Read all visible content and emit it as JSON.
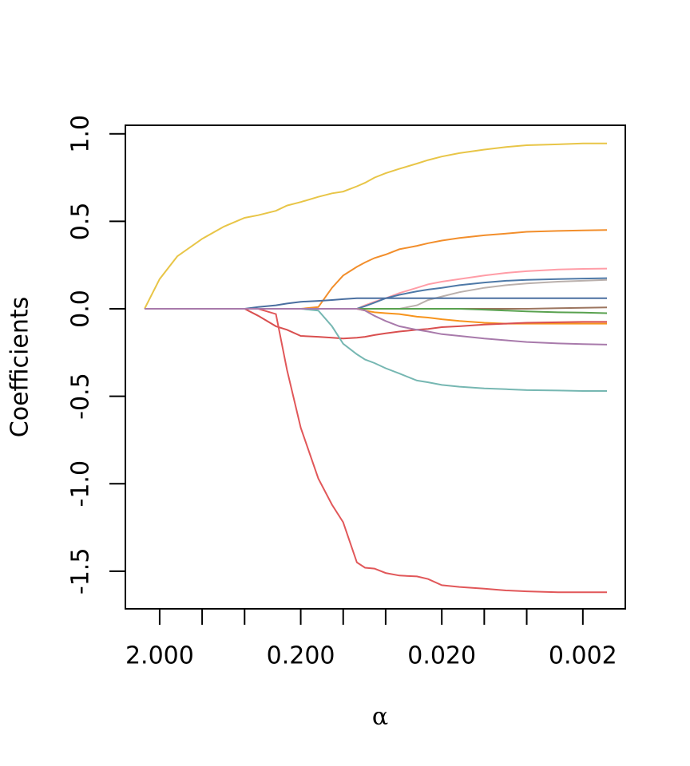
{
  "chart_data": {
    "type": "line",
    "xlabel": "α",
    "ylabel": "Coefficients",
    "xscale": "log",
    "x": [
      2.56,
      2,
      1.5,
      1,
      0.7,
      0.5,
      0.4,
      0.3,
      0.25,
      0.2,
      0.15,
      0.12,
      0.1,
      0.08,
      0.07,
      0.06,
      0.05,
      0.04,
      0.03,
      0.025,
      0.02,
      0.015,
      0.01,
      0.007,
      0.005,
      0.003,
      0.002,
      0.00135
    ],
    "xlim": [
      3.5,
      0.001
    ],
    "xticks": [
      {
        "value": 2,
        "label": "2.000"
      },
      {
        "value": 0.2,
        "label": "0.200"
      },
      {
        "value": 0.02,
        "label": "0.020"
      },
      {
        "value": 0.002,
        "label": "0.002"
      }
    ],
    "xminor_ticks": [
      1,
      0.5,
      0.1,
      0.05,
      0.01,
      0.005
    ],
    "ylim": [
      -1.715,
      1.049
    ],
    "yticks": [
      {
        "value": 1,
        "label": "1.0"
      },
      0.5,
      {
        "value": 0,
        "label": "0.0"
      },
      -0.5,
      {
        "value": -1,
        "label": "-1.0"
      },
      -1.5
    ],
    "series": [
      {
        "color": "#e8c547",
        "values": [
          0,
          0.17,
          0.3,
          0.4,
          0.47,
          0.52,
          0.535,
          0.56,
          0.59,
          0.61,
          0.64,
          0.66,
          0.67,
          0.7,
          0.72,
          0.75,
          0.775,
          0.8,
          0.83,
          0.85,
          0.87,
          0.89,
          0.91,
          0.925,
          0.935,
          0.94,
          0.945,
          0.945
        ]
      },
      {
        "color": "#f28e2b",
        "values": [
          0,
          0,
          0,
          0,
          0,
          0,
          0,
          0,
          0,
          0,
          0.01,
          0.12,
          0.19,
          0.24,
          0.265,
          0.29,
          0.31,
          0.34,
          0.36,
          0.375,
          0.39,
          0.405,
          0.42,
          0.43,
          0.44,
          0.445,
          0.448,
          0.45
        ]
      },
      {
        "color": "#ff9da7",
        "values": [
          0,
          0,
          0,
          0,
          0,
          0,
          0,
          0,
          0,
          0,
          0,
          0,
          0,
          0,
          0.02,
          0.04,
          0.06,
          0.09,
          0.12,
          0.14,
          0.155,
          0.17,
          0.19,
          0.205,
          0.215,
          0.225,
          0.228,
          0.23
        ]
      },
      {
        "color": "#4e79a7",
        "values": [
          0,
          0,
          0,
          0,
          0,
          0,
          0,
          0,
          0,
          0,
          0,
          0,
          0,
          0,
          0.015,
          0.035,
          0.06,
          0.08,
          0.1,
          0.11,
          0.12,
          0.135,
          0.15,
          0.16,
          0.165,
          0.17,
          0.173,
          0.175
        ]
      },
      {
        "color": "#bab0ac",
        "values": [
          0,
          0,
          0,
          0,
          0,
          0,
          0,
          0,
          0,
          0,
          0,
          0,
          0,
          0,
          0,
          0,
          0,
          0,
          0.02,
          0.05,
          0.07,
          0.095,
          0.12,
          0.135,
          0.145,
          0.155,
          0.16,
          0.165
        ]
      },
      {
        "color": "#4a6fa0",
        "values": [
          0,
          0,
          0,
          0,
          0,
          0,
          0.01,
          0.02,
          0.03,
          0.04,
          0.045,
          0.05,
          0.055,
          0.06,
          0.06,
          0.06,
          0.06,
          0.06,
          0.06,
          0.06,
          0.06,
          0.06,
          0.06,
          0.06,
          0.06,
          0.06,
          0.06,
          0.06
        ]
      },
      {
        "color": "#9c755f",
        "values": [
          0,
          0,
          0,
          0,
          0,
          0,
          0,
          0,
          0,
          0,
          0,
          0,
          0,
          0,
          0,
          0,
          0,
          0,
          0,
          0,
          0,
          0,
          0,
          0,
          0,
          0.003,
          0.006,
          0.008
        ]
      },
      {
        "color": "#59a14f",
        "values": [
          0,
          0,
          0,
          0,
          0,
          0,
          0,
          0,
          0,
          0,
          0,
          0,
          0,
          0,
          0,
          0,
          0,
          0,
          0,
          0,
          0,
          0,
          -0.005,
          -0.01,
          -0.015,
          -0.02,
          -0.022,
          -0.025
        ]
      },
      {
        "color": "#f7941d",
        "values": [
          0,
          0,
          0,
          0,
          0,
          0,
          0,
          0,
          0,
          0,
          0,
          0,
          0,
          0,
          -0.01,
          -0.02,
          -0.025,
          -0.03,
          -0.045,
          -0.05,
          -0.06,
          -0.07,
          -0.08,
          -0.085,
          -0.085,
          -0.085,
          -0.085,
          -0.085
        ]
      },
      {
        "color": "#d94f4f",
        "values": [
          0,
          0,
          0,
          0,
          0,
          0,
          -0.04,
          -0.1,
          -0.12,
          -0.155,
          -0.16,
          -0.165,
          -0.17,
          -0.165,
          -0.16,
          -0.15,
          -0.14,
          -0.13,
          -0.12,
          -0.115,
          -0.105,
          -0.1,
          -0.09,
          -0.085,
          -0.08,
          -0.077,
          -0.075,
          -0.075
        ]
      },
      {
        "color": "#e15759",
        "values": [
          0,
          0,
          0,
          0,
          0,
          0,
          0,
          -0.03,
          -0.35,
          -0.68,
          -0.97,
          -1.12,
          -1.22,
          -1.45,
          -1.48,
          -1.485,
          -1.51,
          -1.525,
          -1.53,
          -1.545,
          -1.58,
          -1.59,
          -1.6,
          -1.61,
          -1.615,
          -1.62,
          -1.62,
          -1.62
        ]
      },
      {
        "color": "#76b7b2",
        "values": [
          0,
          0,
          0,
          0,
          0,
          0,
          0,
          0,
          0,
          0,
          -0.01,
          -0.1,
          -0.2,
          -0.26,
          -0.29,
          -0.31,
          -0.34,
          -0.37,
          -0.41,
          -0.42,
          -0.435,
          -0.445,
          -0.455,
          -0.46,
          -0.465,
          -0.467,
          -0.47,
          -0.47
        ]
      },
      {
        "color": "#a87aab",
        "values": [
          0,
          0,
          0,
          0,
          0,
          0,
          0,
          0,
          0,
          0,
          0,
          0,
          0,
          0,
          -0.01,
          -0.04,
          -0.07,
          -0.1,
          -0.12,
          -0.13,
          -0.145,
          -0.155,
          -0.17,
          -0.18,
          -0.19,
          -0.198,
          -0.202,
          -0.205
        ]
      }
    ]
  }
}
